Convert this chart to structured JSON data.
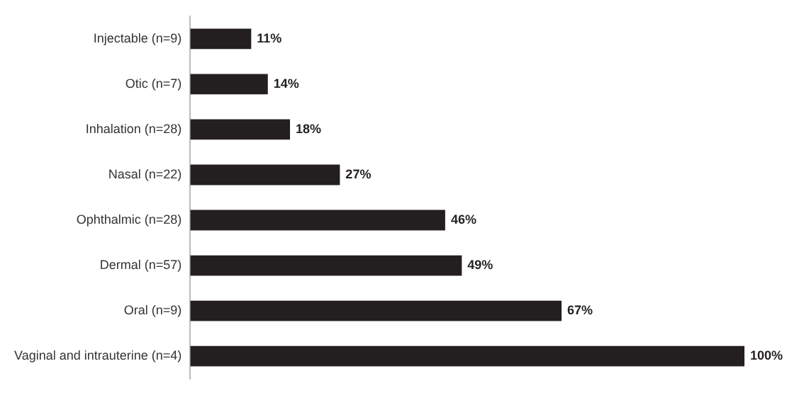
{
  "chart_data": {
    "type": "bar",
    "orientation": "horizontal",
    "categories": [
      "Injectable (n=9)",
      "Otic (n=7)",
      "Inhalation (n=28)",
      "Nasal (n=22)",
      "Ophthalmic (n=28)",
      "Dermal (n=57)",
      "Oral (n=9)",
      "Vaginal and intrauterine (n=4)"
    ],
    "values": [
      11,
      14,
      18,
      27,
      46,
      49,
      67,
      100
    ],
    "value_labels": [
      "11%",
      "14%",
      "18%",
      "27%",
      "46%",
      "49%",
      "67%",
      "100%"
    ],
    "color": "#231f20",
    "xlim": [
      0,
      100
    ],
    "tick_labels": "y"
  }
}
